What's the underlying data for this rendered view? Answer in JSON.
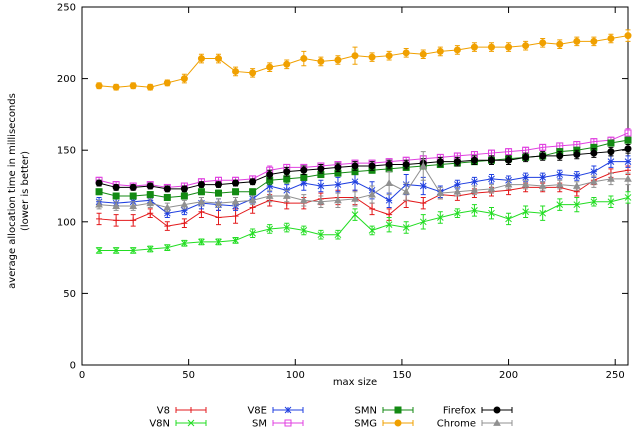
{
  "chart_data": {
    "type": "line",
    "xlabel": "max size",
    "ylabel_lines": [
      "average allocation time in milliseconds",
      "(lower is better)"
    ],
    "xlim": [
      0,
      256
    ],
    "ylim": [
      0,
      250
    ],
    "xticks": [
      0,
      50,
      100,
      150,
      200,
      250
    ],
    "yticks": [
      0,
      50,
      100,
      150,
      200,
      250
    ],
    "grid": false,
    "legend_position": "bottom",
    "x": [
      8,
      16,
      24,
      32,
      40,
      48,
      56,
      64,
      72,
      80,
      88,
      96,
      104,
      112,
      120,
      128,
      136,
      144,
      152,
      160,
      168,
      176,
      184,
      192,
      200,
      208,
      216,
      224,
      232,
      240,
      248,
      256
    ],
    "series": [
      {
        "name": "V8",
        "color": "#e31a1c",
        "marker": "plus",
        "values": [
          102,
          101,
          101,
          106,
          97,
          99,
          107,
          103,
          104,
          110,
          115,
          113,
          113,
          116,
          117,
          117,
          109,
          105,
          115,
          113,
          119,
          118,
          120,
          121,
          122,
          124,
          124,
          124,
          121,
          129,
          134,
          136
        ],
        "errors": [
          4,
          4,
          4,
          3,
          3,
          3,
          4,
          5,
          5,
          4,
          4,
          4,
          4,
          4,
          5,
          5,
          4,
          4,
          5,
          4,
          3,
          3,
          3,
          3,
          3,
          3,
          3,
          3,
          3,
          3,
          3,
          3
        ]
      },
      {
        "name": "V8N",
        "color": "#22dd22",
        "marker": "cross",
        "values": [
          80,
          80,
          80,
          81,
          82,
          85,
          86,
          86,
          87,
          92,
          95,
          96,
          94,
          91,
          91,
          105,
          94,
          98,
          96,
          100,
          103,
          106,
          108,
          106,
          102,
          107,
          106,
          112,
          112,
          114,
          114,
          117
        ],
        "errors": [
          2,
          2,
          2,
          2,
          2,
          2,
          2,
          2,
          2,
          3,
          3,
          3,
          3,
          3,
          3,
          4,
          3,
          5,
          4,
          5,
          4,
          3,
          4,
          4,
          4,
          4,
          5,
          4,
          5,
          3,
          4,
          4
        ]
      },
      {
        "name": "V8E",
        "color": "#1f3fe0",
        "marker": "star",
        "values": [
          114,
          113,
          114,
          115,
          106,
          108,
          113,
          112,
          111,
          116,
          125,
          122,
          127,
          125,
          126,
          128,
          122,
          115,
          126,
          125,
          121,
          126,
          128,
          130,
          129,
          131,
          131,
          133,
          132,
          135,
          142,
          142
        ],
        "errors": [
          3,
          3,
          3,
          3,
          3,
          3,
          4,
          4,
          3,
          3,
          4,
          4,
          5,
          4,
          5,
          6,
          6,
          5,
          7,
          6,
          4,
          3,
          3,
          3,
          3,
          3,
          3,
          3,
          3,
          4,
          4,
          4
        ]
      },
      {
        "name": "SM",
        "color": "#e040e0",
        "marker": "square",
        "values": [
          129,
          126,
          125,
          126,
          124,
          125,
          128,
          129,
          129,
          130,
          136,
          138,
          138,
          139,
          140,
          141,
          141,
          142,
          143,
          144,
          145,
          146,
          147,
          148,
          149,
          150,
          152,
          153,
          154,
          156,
          157,
          162
        ],
        "errors": [
          2,
          2,
          2,
          2,
          2,
          2,
          2,
          2,
          2,
          2,
          3,
          2,
          2,
          2,
          2,
          2,
          2,
          2,
          2,
          2,
          2,
          2,
          2,
          2,
          2,
          2,
          2,
          2,
          2,
          2,
          2,
          3
        ]
      },
      {
        "name": "SMN",
        "color": "#138a13",
        "marker": "filled-square",
        "values": [
          121,
          118,
          118,
          119,
          117,
          118,
          121,
          120,
          121,
          121,
          129,
          130,
          131,
          133,
          134,
          135,
          136,
          137,
          138,
          139,
          140,
          141,
          142,
          143,
          144,
          145,
          146,
          149,
          150,
          152,
          155,
          157
        ],
        "errors": [
          2,
          2,
          2,
          2,
          2,
          2,
          2,
          2,
          2,
          2,
          3,
          3,
          2,
          2,
          2,
          2,
          2,
          2,
          2,
          2,
          2,
          2,
          2,
          2,
          2,
          2,
          2,
          2,
          2,
          2,
          2,
          2
        ]
      },
      {
        "name": "SMG",
        "color": "#f0a000",
        "marker": "filled-circle",
        "values": [
          195,
          194,
          195,
          194,
          197,
          200,
          214,
          214,
          205,
          204,
          208,
          210,
          214,
          212,
          213,
          216,
          215,
          216,
          218,
          217,
          219,
          220,
          222,
          222,
          222,
          223,
          225,
          224,
          226,
          226,
          228,
          230
        ],
        "errors": [
          2,
          2,
          2,
          2,
          2,
          3,
          3,
          3,
          3,
          3,
          3,
          3,
          5,
          3,
          3,
          6,
          3,
          3,
          3,
          3,
          3,
          3,
          3,
          3,
          3,
          3,
          3,
          3,
          3,
          3,
          3,
          4
        ]
      },
      {
        "name": "Firefox",
        "color": "#000000",
        "marker": "filled-circle",
        "values": [
          127,
          124,
          124,
          125,
          123,
          123,
          126,
          126,
          127,
          128,
          133,
          135,
          136,
          137,
          138,
          139,
          139,
          140,
          140,
          141,
          142,
          142,
          143,
          143,
          143,
          145,
          146,
          146,
          147,
          148,
          149,
          151
        ],
        "errors": [
          2,
          2,
          2,
          2,
          2,
          2,
          2,
          2,
          2,
          2,
          3,
          3,
          3,
          3,
          3,
          3,
          3,
          3,
          3,
          3,
          3,
          3,
          3,
          3,
          3,
          3,
          3,
          3,
          3,
          3,
          3,
          3
        ]
      },
      {
        "name": "Chrome",
        "color": "#909090",
        "marker": "triangle",
        "values": [
          112,
          111,
          111,
          113,
          110,
          112,
          114,
          113,
          114,
          115,
          118,
          118,
          115,
          114,
          115,
          116,
          119,
          127,
          121,
          139,
          120,
          121,
          122,
          123,
          126,
          126,
          125,
          126,
          125,
          128,
          130,
          130
        ],
        "errors": [
          3,
          3,
          3,
          3,
          3,
          3,
          3,
          3,
          3,
          3,
          4,
          4,
          4,
          4,
          5,
          5,
          6,
          8,
          6,
          10,
          4,
          3,
          3,
          3,
          3,
          3,
          3,
          3,
          3,
          4,
          4,
          4
        ]
      }
    ]
  }
}
